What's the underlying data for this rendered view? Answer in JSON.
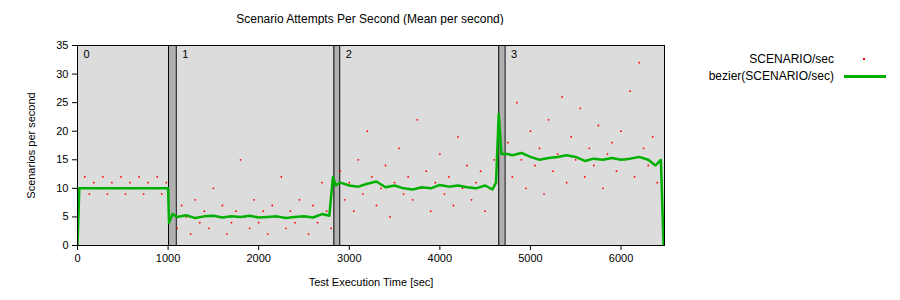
{
  "chart_data": {
    "type": "scatter",
    "title": "Scenario Attempts Per Second (Mean per second)",
    "x_label": "Test Execution Time [sec]",
    "y_label": "Scenarios per second",
    "xlim": [
      0,
      6480
    ],
    "xticks": [
      0,
      1000,
      2000,
      3000,
      4000,
      5000,
      6000
    ],
    "ylim": [
      0,
      35
    ],
    "yticks": [
      0,
      5,
      10,
      15,
      20,
      25,
      30,
      35
    ],
    "grid": false,
    "legend": "right",
    "phases": [
      {
        "label": "0",
        "start": 0,
        "end": 1005
      },
      {
        "label": "1",
        "start": 1090,
        "end": 2830
      },
      {
        "label": "2",
        "start": 2895,
        "end": 4650
      },
      {
        "label": "3",
        "start": 4720,
        "end": 6480
      }
    ],
    "series": [
      {
        "name": "SCENARIO/sec",
        "type": "scatter",
        "marker": "dot",
        "color": "#ff0000",
        "x": [
          30,
          80,
          130,
          180,
          230,
          280,
          330,
          380,
          430,
          480,
          530,
          580,
          630,
          680,
          730,
          780,
          830,
          880,
          930,
          980,
          1100,
          1150,
          1200,
          1250,
          1300,
          1350,
          1400,
          1450,
          1500,
          1550,
          1600,
          1650,
          1700,
          1750,
          1800,
          1850,
          1900,
          1950,
          2000,
          2050,
          2100,
          2150,
          2200,
          2250,
          2300,
          2350,
          2400,
          2450,
          2500,
          2550,
          2600,
          2650,
          2700,
          2750,
          2800,
          2900,
          2950,
          3000,
          3050,
          3100,
          3150,
          3200,
          3250,
          3300,
          3350,
          3400,
          3450,
          3500,
          3550,
          3600,
          3650,
          3700,
          3750,
          3800,
          3850,
          3900,
          3950,
          4000,
          4050,
          4100,
          4150,
          4200,
          4250,
          4300,
          4350,
          4400,
          4450,
          4500,
          4550,
          4600,
          4750,
          4800,
          4850,
          4900,
          4950,
          5000,
          5050,
          5100,
          5150,
          5200,
          5250,
          5300,
          5350,
          5400,
          5450,
          5500,
          5550,
          5600,
          5650,
          5700,
          5750,
          5800,
          5850,
          5900,
          5950,
          6000,
          6050,
          6100,
          6150,
          6200,
          6250,
          6300,
          6350,
          6400
        ],
        "values": [
          10,
          12,
          9,
          11,
          10,
          12,
          9,
          11,
          10,
          12,
          9,
          11,
          10,
          12,
          9,
          11,
          10,
          12,
          9,
          11,
          3,
          7,
          5,
          2,
          8,
          4,
          6,
          3,
          10,
          5,
          7,
          2,
          4,
          6,
          15,
          5,
          3,
          8,
          4,
          6,
          2,
          7,
          5,
          12,
          3,
          6,
          4,
          8,
          5,
          2,
          7,
          4,
          11,
          6,
          3,
          13,
          8,
          11,
          6,
          15,
          9,
          20,
          12,
          7,
          10,
          14,
          5,
          11,
          17,
          9,
          12,
          8,
          22,
          10,
          13,
          6,
          11,
          16,
          9,
          12,
          7,
          19,
          10,
          14,
          8,
          11,
          13,
          6,
          10,
          15,
          18,
          12,
          25,
          15,
          10,
          20,
          14,
          17,
          9,
          22,
          13,
          16,
          26,
          11,
          19,
          15,
          24,
          12,
          17,
          14,
          21,
          10,
          16,
          18,
          13,
          20,
          15,
          27,
          12,
          32,
          17,
          14,
          19,
          11
        ]
      },
      {
        "name": "bezier(SCENARIO/sec)",
        "type": "line",
        "line_style": "solid",
        "color": "#00b000",
        "x": [
          0,
          20,
          1000,
          1010,
          1050,
          1100,
          1200,
          1300,
          1400,
          1500,
          1600,
          1700,
          1800,
          1900,
          2000,
          2100,
          2200,
          2300,
          2400,
          2500,
          2600,
          2700,
          2780,
          2820,
          2850,
          2900,
          3000,
          3100,
          3200,
          3300,
          3400,
          3500,
          3600,
          3700,
          3800,
          3900,
          4000,
          4100,
          4200,
          4300,
          4400,
          4500,
          4580,
          4620,
          4650,
          4680,
          4750,
          4800,
          4900,
          5000,
          5100,
          5200,
          5300,
          5400,
          5500,
          5600,
          5700,
          5800,
          5900,
          6000,
          6100,
          6200,
          6300,
          6380,
          6440,
          6470
        ],
        "values": [
          0,
          10,
          10,
          4,
          5.5,
          5,
          5.3,
          4.8,
          5.1,
          5.2,
          4.9,
          5.1,
          5,
          5.2,
          4.9,
          5,
          5.1,
          4.8,
          5,
          5.1,
          4.9,
          5.5,
          5.2,
          12,
          10.5,
          11,
          10.5,
          10.3,
          10.8,
          11.2,
          10.2,
          10.5,
          10,
          9.8,
          10.2,
          10,
          10.6,
          10.3,
          10.5,
          10.2,
          10,
          10.5,
          9.8,
          11,
          23,
          16,
          16,
          15.8,
          16.2,
          15.5,
          15,
          15.3,
          15.5,
          15.8,
          15.5,
          14.8,
          15.2,
          15,
          15.3,
          15,
          15.2,
          15.5,
          15,
          14,
          15,
          0
        ]
      }
    ]
  }
}
